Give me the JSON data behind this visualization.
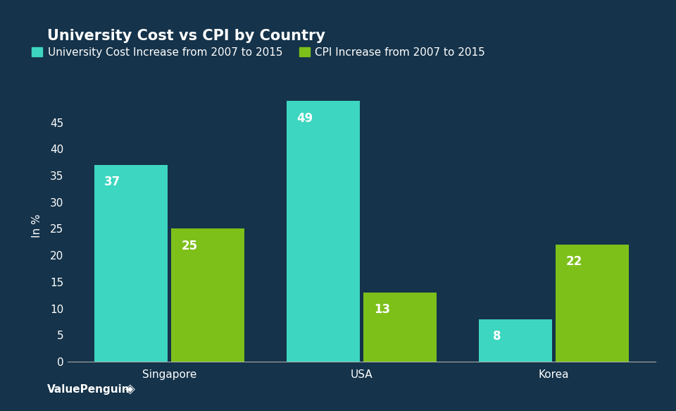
{
  "title": "University Cost vs CPI by Country",
  "categories": [
    "Singapore",
    "USA",
    "Korea"
  ],
  "university_cost": [
    37,
    49,
    8
  ],
  "cpi_increase": [
    25,
    13,
    22
  ],
  "uni_color": "#3DD6C0",
  "cpi_color": "#7DC01A",
  "bar_label_color": "#ffffff",
  "bar_width": 0.38,
  "ylabel": "In %",
  "ylim": [
    0,
    51
  ],
  "yticks": [
    0,
    5,
    10,
    15,
    20,
    25,
    30,
    35,
    40,
    45
  ],
  "background_color": "#15334A",
  "text_color": "#ffffff",
  "legend_label_uni": "University Cost Increase from 2007 to 2015",
  "legend_label_cpi": "CPI Increase from 2007 to 2015",
  "title_fontsize": 15,
  "axis_label_fontsize": 11,
  "tick_label_fontsize": 11,
  "bar_value_fontsize": 12,
  "legend_fontsize": 11,
  "watermark": "ValuePenguin"
}
